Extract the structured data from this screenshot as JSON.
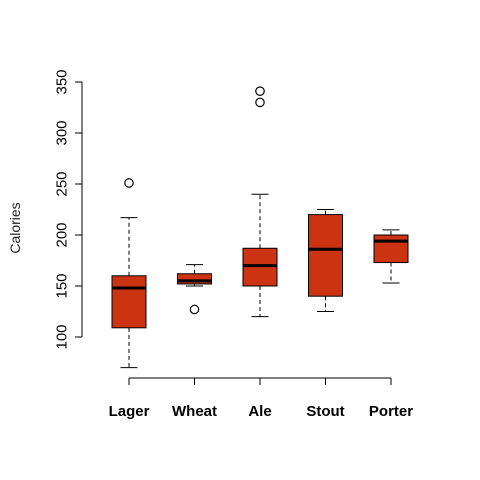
{
  "chart_data": {
    "type": "boxplot",
    "title": "",
    "xlabel": "",
    "ylabel": "Calories",
    "ylim": [
      50,
      360
    ],
    "yticks": [
      100,
      150,
      200,
      250,
      300,
      350
    ],
    "grid": false,
    "box_color": "#cc3311",
    "categories": [
      "Lager",
      "Wheat",
      "Ale",
      "Stout",
      "Porter"
    ],
    "boxes": [
      {
        "name": "Lager",
        "whisker_low": 70,
        "q1": 109,
        "median": 148,
        "q3": 160,
        "whisker_high": 217,
        "outliers": [
          251
        ]
      },
      {
        "name": "Wheat",
        "whisker_low": 150,
        "q1": 152,
        "median": 155,
        "q3": 162,
        "whisker_high": 171,
        "outliers": [
          127
        ]
      },
      {
        "name": "Ale",
        "whisker_low": 120,
        "q1": 150,
        "median": 170,
        "q3": 187,
        "whisker_high": 240,
        "outliers": [
          330,
          341
        ]
      },
      {
        "name": "Stout",
        "whisker_low": 125,
        "q1": 140,
        "median": 186,
        "q3": 220,
        "whisker_high": 225,
        "outliers": []
      },
      {
        "name": "Porter",
        "whisker_low": 153,
        "q1": 173,
        "median": 194,
        "q3": 200,
        "whisker_high": 205,
        "outliers": []
      }
    ]
  }
}
